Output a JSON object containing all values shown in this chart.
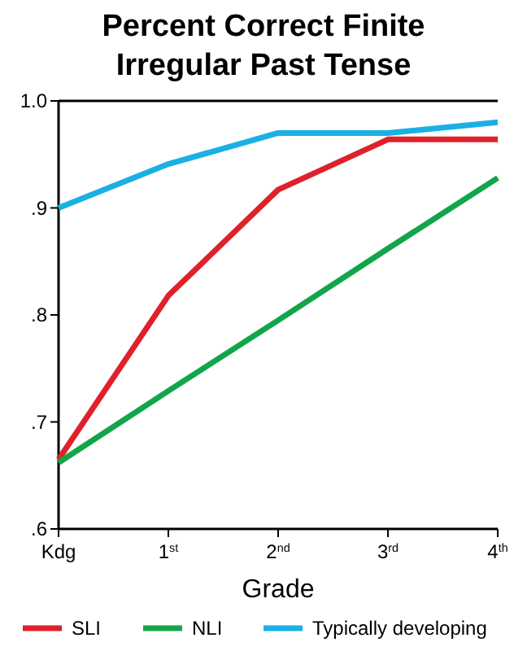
{
  "chart_data": {
    "type": "line",
    "title": "Percent Correct Finite\nIrregular Past Tense",
    "xlabel": "Grade",
    "categories": [
      "Kdg",
      "1$^{st}$",
      "2$^{nd}$",
      "3$^{rd}$",
      "4$^{th}$"
    ],
    "series": [
      {
        "name": "SLI",
        "color": "#e0202a",
        "values": [
          0.665,
          0.818,
          0.917,
          0.964,
          0.964
        ]
      },
      {
        "name": "NLI",
        "color": "#12a54a",
        "values": [
          0.662,
          0.729,
          0.795,
          0.862,
          0.928
        ]
      },
      {
        "name": "Typically developing",
        "color": "#1ab0e6",
        "values": [
          0.9,
          0.941,
          0.97,
          0.97,
          0.98
        ]
      }
    ],
    "ylim": [
      0.6,
      1.0
    ],
    "yticks": [
      {
        "value": 0.6,
        "label": ".6"
      },
      {
        "value": 0.7,
        "label": ".7"
      },
      {
        "value": 0.8,
        "label": ".8"
      },
      {
        "value": 0.9,
        "label": ".9"
      },
      {
        "value": 1.0,
        "label": "1.0"
      }
    ],
    "legend": "bottom",
    "grid": false,
    "marker": "none",
    "line_style": "solid"
  }
}
